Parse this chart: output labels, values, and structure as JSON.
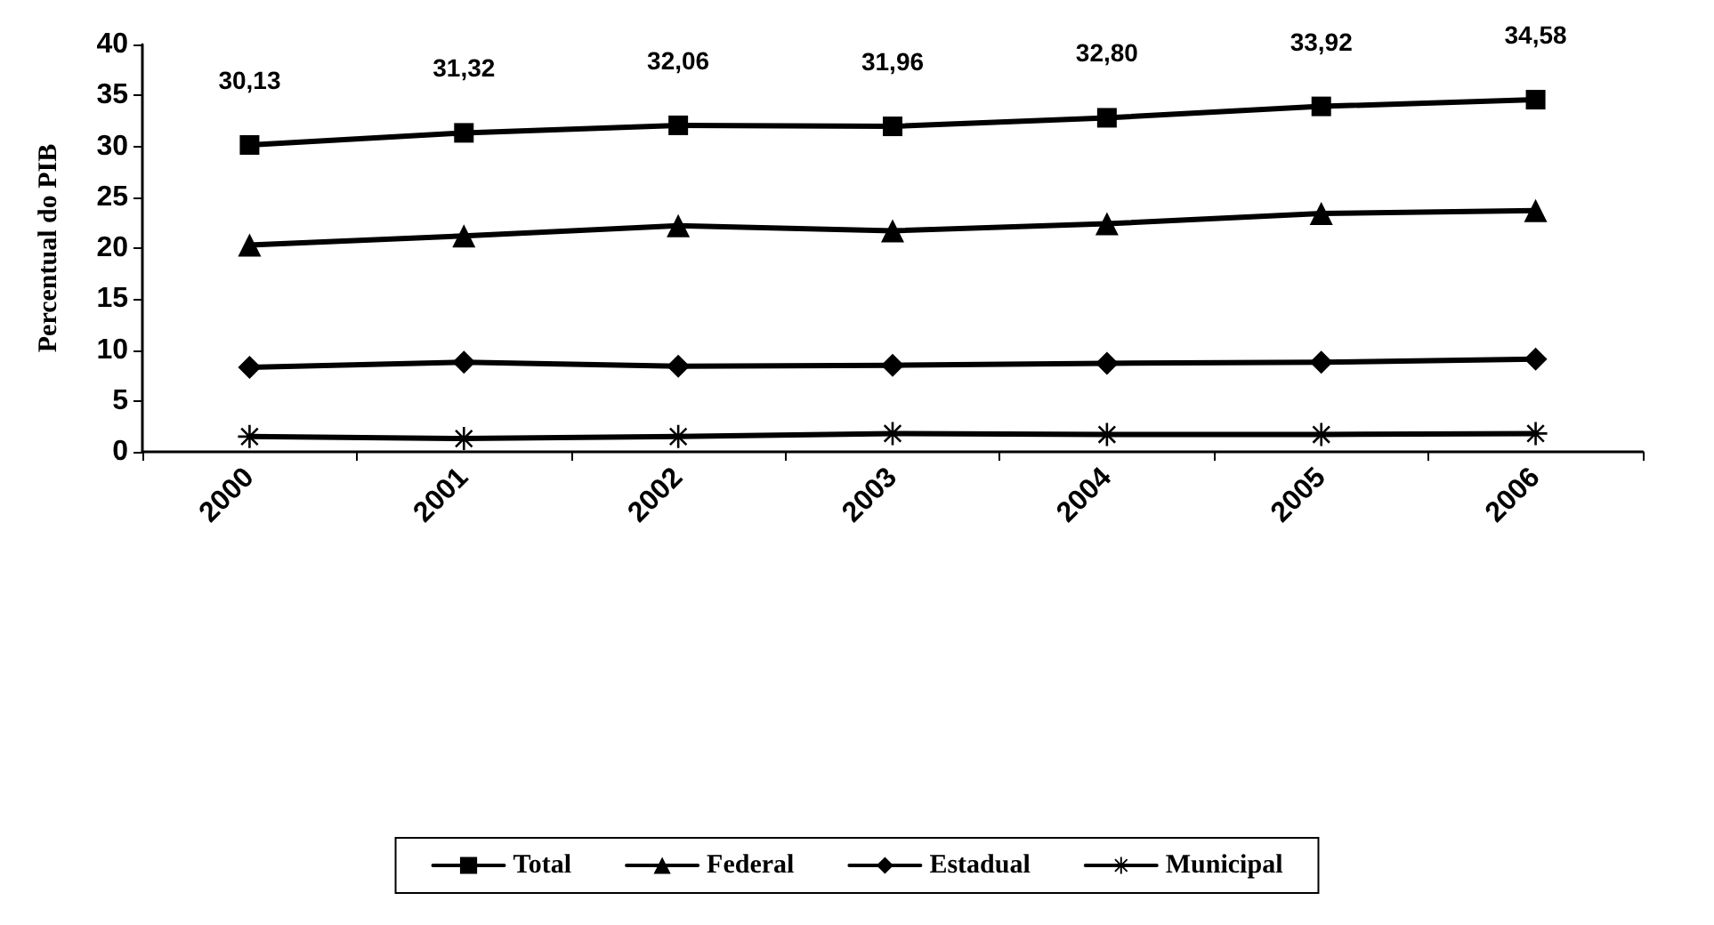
{
  "chart_data": {
    "type": "line",
    "ylabel": "Percentual do PIB",
    "categories": [
      "2000",
      "2001",
      "2002",
      "2003",
      "2004",
      "2005",
      "2006"
    ],
    "series": [
      {
        "name": "Total",
        "color": "#000000",
        "marker": "square",
        "values": [
          30.13,
          31.32,
          32.06,
          31.96,
          32.8,
          33.92,
          34.58
        ],
        "value_labels": [
          "30,13",
          "31,32",
          "32,06",
          "31,96",
          "32,80",
          "33,92",
          "34,58"
        ]
      },
      {
        "name": "Federal",
        "color": "#000000",
        "marker": "triangle",
        "values": [
          20.3,
          21.2,
          22.2,
          21.7,
          22.4,
          23.4,
          23.7
        ]
      },
      {
        "name": "Estadual",
        "color": "#000000",
        "marker": "diamond",
        "values": [
          8.3,
          8.8,
          8.4,
          8.5,
          8.7,
          8.8,
          9.1
        ]
      },
      {
        "name": "Municipal",
        "color": "#000000",
        "marker": "star",
        "values": [
          1.5,
          1.3,
          1.5,
          1.8,
          1.7,
          1.7,
          1.8
        ]
      }
    ],
    "ylim": [
      0,
      40
    ],
    "yticks": [
      0,
      5,
      10,
      15,
      20,
      25,
      30,
      35,
      40
    ],
    "grid": false,
    "legend": "bottom",
    "line_style": "solid"
  }
}
